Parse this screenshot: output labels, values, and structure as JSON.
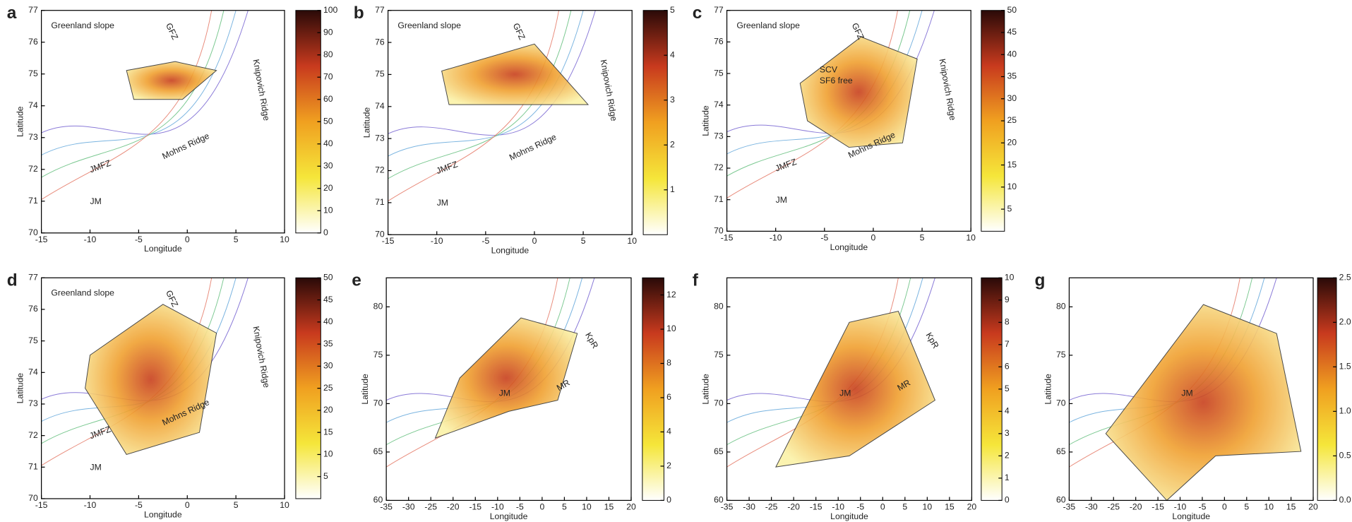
{
  "panels": [
    {
      "label": "a",
      "xlabel": "Longitude",
      "ylabel": "Latitude",
      "xlim": [
        -15,
        10
      ],
      "ylim": [
        70,
        77
      ],
      "xticks": [
        -15,
        -10,
        -5,
        0,
        5,
        10
      ],
      "yticks": [
        70,
        71,
        72,
        73,
        74,
        75,
        76,
        77
      ],
      "cbar_lim": [
        0,
        100
      ],
      "cbar_ticks": [
        0,
        10,
        20,
        30,
        40,
        50,
        60,
        70,
        80,
        90,
        100
      ],
      "annotations": [
        "Greenland slope",
        "GFZ",
        "Knipovich Ridge",
        "Mohns Ridge",
        "JMFZ",
        "JM"
      ]
    },
    {
      "label": "b",
      "xlabel": "Longitude",
      "ylabel": "Latitude",
      "xlim": [
        -15,
        10
      ],
      "ylim": [
        70,
        77
      ],
      "xticks": [
        -15,
        -10,
        -5,
        0,
        5,
        10
      ],
      "yticks": [
        70,
        71,
        72,
        73,
        74,
        75,
        76,
        77
      ],
      "cbar_lim": [
        0,
        5
      ],
      "cbar_ticks": [
        1,
        2,
        3,
        4,
        5
      ],
      "annotations": [
        "Greenland slope",
        "GFZ",
        "Knipovich Ridge",
        "Mohns Ridge",
        "JMFZ",
        "JM"
      ]
    },
    {
      "label": "c",
      "xlabel": "Longitude",
      "ylabel": "Latitude",
      "xlim": [
        -15,
        10
      ],
      "ylim": [
        70,
        77
      ],
      "xticks": [
        -15,
        -10,
        -5,
        0,
        5,
        10
      ],
      "yticks": [
        70,
        71,
        72,
        73,
        74,
        75,
        76,
        77
      ],
      "cbar_lim": [
        0,
        50
      ],
      "cbar_ticks": [
        5,
        10,
        15,
        20,
        25,
        30,
        35,
        40,
        45,
        50
      ],
      "annotations": [
        "Greenland slope",
        "GFZ",
        "Knipovich Ridge",
        "Mohns Ridge",
        "JMFZ",
        "JM",
        "SCV",
        "SF6 free"
      ]
    },
    {
      "label": "d",
      "xlabel": "Longitude",
      "ylabel": "Latitude",
      "xlim": [
        -15,
        10
      ],
      "ylim": [
        70,
        77
      ],
      "xticks": [
        -15,
        -10,
        -5,
        0,
        5,
        10
      ],
      "yticks": [
        70,
        71,
        72,
        73,
        74,
        75,
        76,
        77
      ],
      "cbar_lim": [
        0,
        50
      ],
      "cbar_ticks": [
        5,
        10,
        15,
        20,
        25,
        30,
        35,
        40,
        45,
        50
      ],
      "annotations": [
        "Greenland slope",
        "GFZ",
        "Knipovich Ridge",
        "Mohns Ridge",
        "JMFZ",
        "JM"
      ]
    },
    {
      "label": "e",
      "xlabel": "Longitude",
      "ylabel": "Latitude",
      "xlim": [
        -35,
        20
      ],
      "ylim": [
        60,
        83
      ],
      "xticks": [
        -35,
        -30,
        -25,
        -20,
        -15,
        -10,
        -5,
        0,
        5,
        10,
        15,
        20
      ],
      "yticks": [
        60,
        65,
        70,
        75,
        80
      ],
      "cbar_lim": [
        0,
        13
      ],
      "cbar_ticks": [
        0,
        2,
        4,
        6,
        8,
        10,
        12
      ],
      "annotations": [
        "JM",
        "MR",
        "KpR"
      ]
    },
    {
      "label": "f",
      "xlabel": "Longitude",
      "ylabel": "Latitude",
      "xlim": [
        -35,
        20
      ],
      "ylim": [
        60,
        83
      ],
      "xticks": [
        -35,
        -30,
        -25,
        -20,
        -15,
        -10,
        -5,
        0,
        5,
        10,
        15,
        20
      ],
      "yticks": [
        60,
        65,
        70,
        75,
        80
      ],
      "cbar_lim": [
        0,
        10
      ],
      "cbar_ticks": [
        0,
        1,
        2,
        3,
        4,
        5,
        6,
        7,
        8,
        9,
        10
      ],
      "annotations": [
        "JM",
        "MR",
        "KpR"
      ]
    },
    {
      "label": "g",
      "xlabel": "Longitude",
      "ylabel": "Latitude",
      "xlim": [
        -35,
        20
      ],
      "ylim": [
        60,
        83
      ],
      "xticks": [
        -35,
        -30,
        -25,
        -20,
        -15,
        -10,
        -5,
        0,
        5,
        10,
        15,
        20
      ],
      "yticks": [
        60,
        65,
        70,
        75,
        80
      ],
      "cbar_lim": [
        0,
        2.5
      ],
      "cbar_ticks": [
        {
          "value": 0,
          "label": "0.0"
        },
        {
          "value": 0.5,
          "label": "0.5"
        },
        {
          "value": 1,
          "label": "1.0"
        },
        {
          "value": 1.5,
          "label": "1.5"
        },
        {
          "value": 2,
          "label": "2.0"
        },
        {
          "value": 2.5,
          "label": "2.5"
        }
      ],
      "annotations": [
        "JM"
      ]
    }
  ]
}
